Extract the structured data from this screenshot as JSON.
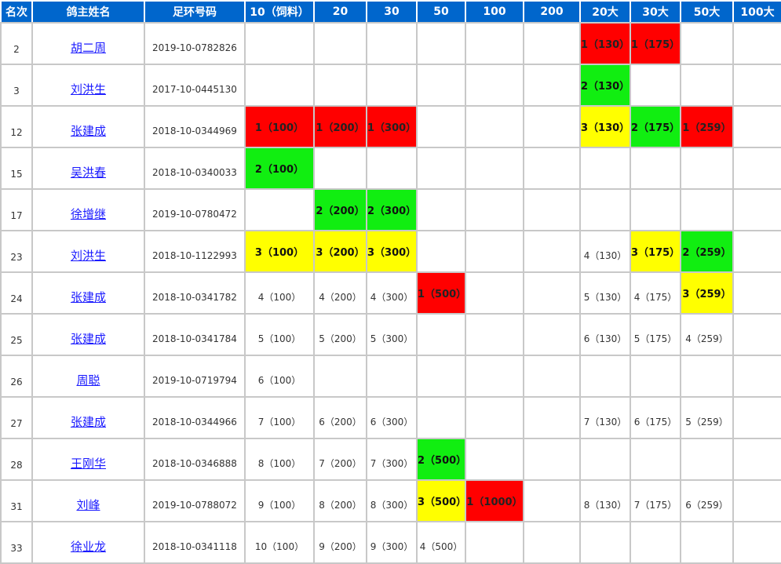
{
  "headers": [
    "名次",
    "鸽主姓名",
    "足环号码",
    "10（饲料）",
    "20",
    "30",
    "50",
    "100",
    "200",
    "20大",
    "30大",
    "50大",
    "100大"
  ],
  "colors": {
    "red": "#ff0000",
    "green": "#11ee11",
    "yellow": "#ffff00",
    "header": "#0066cc"
  },
  "rows": [
    {
      "rank": "2",
      "name": "胡二周",
      "ring": "2019-10-0782826",
      "cells": [
        "",
        "",
        "",
        "",
        "",
        "",
        "1（130）",
        "1（175）",
        "",
        ""
      ],
      "fills": [
        "",
        "",
        "",
        "",
        "",
        "",
        "red",
        "red",
        "",
        ""
      ]
    },
    {
      "rank": "3",
      "name": "刘洪生",
      "ring": "2017-10-0445130",
      "cells": [
        "",
        "",
        "",
        "",
        "",
        "",
        "2（130）",
        "",
        "",
        ""
      ],
      "fills": [
        "",
        "",
        "",
        "",
        "",
        "",
        "green",
        "",
        "",
        ""
      ]
    },
    {
      "rank": "12",
      "name": "张建成",
      "ring": "2018-10-0344969",
      "cells": [
        "1（100）",
        "1（200）",
        "1（300）",
        "",
        "",
        "",
        "3（130）",
        "2（175）",
        "1（259）",
        ""
      ],
      "fills": [
        "red",
        "red",
        "red",
        "",
        "",
        "",
        "yellow",
        "green",
        "red",
        ""
      ]
    },
    {
      "rank": "15",
      "name": "吴洪春",
      "ring": "2018-10-0340033",
      "cells": [
        "2（100）",
        "",
        "",
        "",
        "",
        "",
        "",
        "",
        "",
        ""
      ],
      "fills": [
        "green",
        "",
        "",
        "",
        "",
        "",
        "",
        "",
        "",
        ""
      ]
    },
    {
      "rank": "17",
      "name": "徐增继",
      "ring": "2019-10-0780472",
      "cells": [
        "",
        "2（200）",
        "2（300）",
        "",
        "",
        "",
        "",
        "",
        "",
        ""
      ],
      "fills": [
        "",
        "green",
        "green",
        "",
        "",
        "",
        "",
        "",
        "",
        ""
      ]
    },
    {
      "rank": "23",
      "name": "刘洪生",
      "ring": "2018-10-1122993",
      "cells": [
        "3（100）",
        "3（200）",
        "3（300）",
        "",
        "",
        "",
        "4（130）",
        "3（175）",
        "2（259）",
        ""
      ],
      "fills": [
        "yellow",
        "yellow",
        "yellow",
        "",
        "",
        "",
        "",
        "yellow",
        "green",
        ""
      ]
    },
    {
      "rank": "24",
      "name": "张建成",
      "ring": "2018-10-0341782",
      "cells": [
        "4（100）",
        "4（200）",
        "4（300）",
        "1（500）",
        "",
        "",
        "5（130）",
        "4（175）",
        "3（259）",
        ""
      ],
      "fills": [
        "",
        "",
        "",
        "red",
        "",
        "",
        "",
        "",
        "yellow",
        ""
      ]
    },
    {
      "rank": "25",
      "name": "张建成",
      "ring": "2018-10-0341784",
      "cells": [
        "5（100）",
        "5（200）",
        "5（300）",
        "",
        "",
        "",
        "6（130）",
        "5（175）",
        "4（259）",
        ""
      ],
      "fills": [
        "",
        "",
        "",
        "",
        "",
        "",
        "",
        "",
        "",
        ""
      ]
    },
    {
      "rank": "26",
      "name": "周聪",
      "ring": "2019-10-0719794",
      "cells": [
        "6（100）",
        "",
        "",
        "",
        "",
        "",
        "",
        "",
        "",
        ""
      ],
      "fills": [
        "",
        "",
        "",
        "",
        "",
        "",
        "",
        "",
        "",
        ""
      ]
    },
    {
      "rank": "27",
      "name": "张建成",
      "ring": "2018-10-0344966",
      "cells": [
        "7（100）",
        "6（200）",
        "6（300）",
        "",
        "",
        "",
        "7（130）",
        "6（175）",
        "5（259）",
        ""
      ],
      "fills": [
        "",
        "",
        "",
        "",
        "",
        "",
        "",
        "",
        "",
        ""
      ]
    },
    {
      "rank": "28",
      "name": "王刚华",
      "ring": "2018-10-0346888",
      "cells": [
        "8（100）",
        "7（200）",
        "7（300）",
        "2（500）",
        "",
        "",
        "",
        "",
        "",
        ""
      ],
      "fills": [
        "",
        "",
        "",
        "green",
        "",
        "",
        "",
        "",
        "",
        ""
      ]
    },
    {
      "rank": "31",
      "name": "刘峰",
      "ring": "2019-10-0788072",
      "cells": [
        "9（100）",
        "8（200）",
        "8（300）",
        "3（500）",
        "1（1000）",
        "",
        "8（130）",
        "7（175）",
        "6（259）",
        ""
      ],
      "fills": [
        "",
        "",
        "",
        "yellow",
        "red",
        "",
        "",
        "",
        "",
        ""
      ]
    },
    {
      "rank": "33",
      "name": "徐业龙",
      "ring": "2018-10-0341118",
      "cells": [
        "10（100）",
        "9（200）",
        "9（300）",
        "4（500）",
        "",
        "",
        "",
        "",
        "",
        ""
      ],
      "fills": [
        "",
        "",
        "",
        "",
        "",
        "",
        "",
        "",
        "",
        ""
      ]
    }
  ]
}
